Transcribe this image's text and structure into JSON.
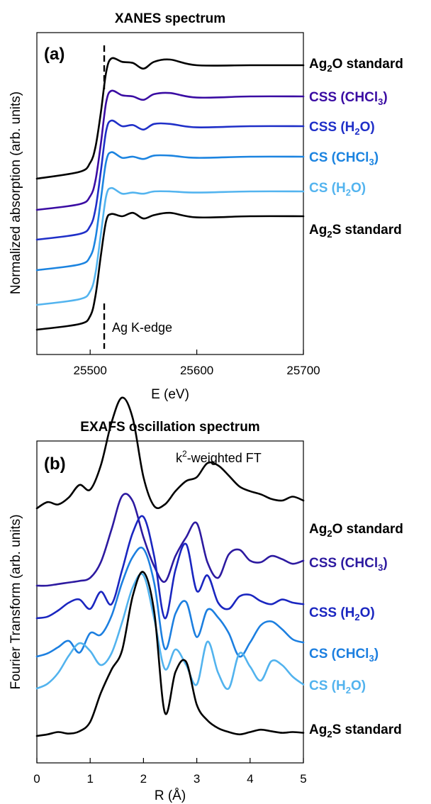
{
  "chart_data": [
    {
      "type": "line",
      "panel": "(a)",
      "title": "XANES spectrum",
      "xlabel": "E  (eV)",
      "ylabel": "Normalized absorption  (arb. units)",
      "xlim": [
        25450,
        25700
      ],
      "xticks": [
        25500,
        25600,
        25700
      ],
      "xtick_labels": [
        "25500",
        "25600",
        "25700"
      ],
      "annotation": "Ag K-edge",
      "edge_energy": 25512,
      "series": [
        {
          "name_pre": "Ag",
          "name_sub": "2",
          "name_post": "O standard",
          "color": "#000000",
          "offset": 0,
          "x": [
            25450,
            25490,
            25500,
            25505,
            25510,
            25515,
            25520,
            25530,
            25540,
            25550,
            25560,
            25575,
            25600,
            25650,
            25700
          ],
          "y": [
            0.0,
            0.06,
            0.14,
            0.28,
            0.58,
            0.94,
            1.06,
            1.03,
            1.02,
            0.97,
            1.03,
            1.05,
            1.0,
            1.0,
            1.0
          ]
        },
        {
          "name_pre": "CSS  (CHCl",
          "name_sub": "3",
          "name_post": ")",
          "color": "#3a0ca3",
          "offset": 0,
          "x": [
            25450,
            25490,
            25500,
            25505,
            25510,
            25515,
            25520,
            25530,
            25540,
            25550,
            25560,
            25575,
            25600,
            25650,
            25700
          ],
          "y": [
            0.0,
            0.05,
            0.12,
            0.26,
            0.58,
            0.95,
            1.05,
            1.01,
            1.0,
            0.97,
            1.02,
            1.03,
            0.99,
            1.0,
            1.0
          ]
        },
        {
          "name_pre": "CSS  (H",
          "name_sub": "2",
          "name_post": "O)",
          "color": "#1f2fc8",
          "offset": 0,
          "x": [
            25450,
            25490,
            25500,
            25505,
            25510,
            25515,
            25520,
            25530,
            25540,
            25550,
            25560,
            25575,
            25600,
            25650,
            25700
          ],
          "y": [
            0.0,
            0.05,
            0.12,
            0.27,
            0.6,
            0.96,
            1.05,
            1.0,
            1.01,
            0.97,
            1.02,
            1.02,
            0.99,
            1.0,
            1.0
          ]
        },
        {
          "name_pre": "CS (CHCl",
          "name_sub": "3",
          "name_post": ")",
          "color": "#1c84e0",
          "offset": 0,
          "x": [
            25450,
            25490,
            25500,
            25505,
            25510,
            25515,
            25520,
            25530,
            25540,
            25550,
            25560,
            25575,
            25600,
            25650,
            25700
          ],
          "y": [
            0.0,
            0.05,
            0.12,
            0.28,
            0.62,
            0.96,
            1.04,
            0.99,
            1.0,
            0.98,
            1.01,
            1.01,
            0.99,
            1.0,
            1.0
          ]
        },
        {
          "name_pre": "CS  (H",
          "name_sub": "2",
          "name_post": "O)",
          "color": "#53b4ef",
          "offset": 0,
          "x": [
            25450,
            25490,
            25500,
            25505,
            25510,
            25515,
            25520,
            25530,
            25540,
            25550,
            25560,
            25575,
            25600,
            25650,
            25700
          ],
          "y": [
            0.0,
            0.05,
            0.12,
            0.28,
            0.62,
            0.96,
            1.03,
            0.98,
            0.99,
            0.98,
            1.0,
            1.0,
            0.99,
            1.0,
            1.0
          ]
        },
        {
          "name_pre": "Ag",
          "name_sub": "2",
          "name_post": "S standard",
          "color": "#000000",
          "offset": 0,
          "x": [
            25450,
            25490,
            25500,
            25505,
            25510,
            25515,
            25520,
            25530,
            25540,
            25550,
            25560,
            25575,
            25600,
            25650,
            25700
          ],
          "y": [
            0.0,
            0.05,
            0.12,
            0.3,
            0.65,
            0.96,
            1.02,
            1.0,
            1.03,
            0.98,
            1.01,
            1.03,
            0.99,
            1.0,
            1.0
          ]
        }
      ]
    },
    {
      "type": "line",
      "panel": "(b)",
      "title": "EXAFS oscillation spectrum",
      "xlabel": "R (Å)",
      "ylabel": "Fourier Transform (arb. units)",
      "annotation_pre": "k",
      "annotation_sup": "2",
      "annotation_post": "-weighted FT",
      "xlim": [
        0,
        5
      ],
      "xticks": [
        0,
        1,
        2,
        3,
        4,
        5
      ],
      "xtick_labels": [
        "0",
        "1",
        "2",
        "3",
        "4",
        "5"
      ],
      "series": [
        {
          "name_pre": "Ag",
          "name_sub": "2",
          "name_post": "O standard",
          "color": "#000000",
          "x": [
            0,
            0.2,
            0.4,
            0.6,
            0.8,
            1.0,
            1.2,
            1.4,
            1.6,
            1.8,
            2.0,
            2.2,
            2.4,
            2.6,
            2.8,
            3.0,
            3.2,
            3.4,
            3.6,
            3.8,
            4.0,
            4.2,
            4.4,
            4.6,
            4.8,
            5.0
          ],
          "y": [
            0.0,
            0.08,
            0.05,
            0.14,
            0.3,
            0.24,
            0.55,
            1.1,
            1.42,
            1.15,
            0.4,
            0.03,
            0.05,
            0.22,
            0.35,
            0.4,
            0.58,
            0.55,
            0.42,
            0.28,
            0.22,
            0.18,
            0.12,
            0.1,
            0.15,
            0.1
          ]
        },
        {
          "name_pre": "CSS  (CHCl",
          "name_sub": "3",
          "name_post": ")",
          "color": "#2d1aa0",
          "x": [
            0,
            0.2,
            0.4,
            0.6,
            0.8,
            1.0,
            1.2,
            1.4,
            1.6,
            1.8,
            2.0,
            2.2,
            2.4,
            2.6,
            2.8,
            3.0,
            3.2,
            3.4,
            3.6,
            3.8,
            4.0,
            4.2,
            4.4,
            4.6,
            4.8,
            5.0
          ],
          "y": [
            0.0,
            0.0,
            0.02,
            0.04,
            0.06,
            0.1,
            0.3,
            0.72,
            1.15,
            1.08,
            0.62,
            0.25,
            0.05,
            0.38,
            0.62,
            0.8,
            0.3,
            0.1,
            0.4,
            0.46,
            0.32,
            0.3,
            0.38,
            0.34,
            0.28,
            0.32
          ]
        },
        {
          "name_pre": "CSS  (H",
          "name_sub": "2",
          "name_post": "O)",
          "color": "#1a26c0",
          "x": [
            0,
            0.2,
            0.4,
            0.6,
            0.8,
            1.0,
            1.2,
            1.4,
            1.6,
            1.8,
            2.0,
            2.2,
            2.4,
            2.6,
            2.8,
            3.0,
            3.2,
            3.4,
            3.6,
            3.8,
            4.0,
            4.2,
            4.4,
            4.6,
            4.8,
            5.0
          ],
          "y": [
            0.0,
            0.02,
            0.1,
            0.2,
            0.24,
            0.12,
            0.34,
            0.18,
            0.62,
            1.1,
            1.3,
            0.8,
            0.0,
            0.62,
            0.95,
            0.35,
            0.55,
            0.2,
            0.12,
            0.28,
            0.3,
            0.22,
            0.18,
            0.24,
            0.2,
            0.18
          ]
        },
        {
          "name_pre": "CS  (CHCl",
          "name_sub": "3",
          "name_post": ")",
          "color": "#1c7fe0",
          "x": [
            0,
            0.2,
            0.4,
            0.6,
            0.8,
            1.0,
            1.2,
            1.4,
            1.6,
            1.8,
            2.0,
            2.2,
            2.4,
            2.6,
            2.8,
            3.0,
            3.2,
            3.4,
            3.6,
            3.8,
            4.0,
            4.2,
            4.4,
            4.6,
            4.8,
            5.0
          ],
          "y": [
            0.0,
            0.04,
            0.12,
            0.2,
            0.05,
            0.3,
            0.28,
            0.52,
            0.95,
            1.28,
            1.38,
            0.95,
            0.1,
            0.55,
            0.7,
            0.25,
            0.6,
            0.5,
            0.3,
            0.0,
            0.18,
            0.4,
            0.45,
            0.35,
            0.22,
            0.18
          ]
        },
        {
          "name_pre": "CS  (H",
          "name_sub": "2",
          "name_post": "O)",
          "color": "#52b3ee",
          "x": [
            0,
            0.2,
            0.4,
            0.6,
            0.8,
            1.0,
            1.2,
            1.4,
            1.6,
            1.8,
            2.0,
            2.2,
            2.4,
            2.6,
            2.8,
            3.0,
            3.2,
            3.4,
            3.6,
            3.8,
            4.0,
            4.2,
            4.4,
            4.6,
            4.8,
            5.0
          ],
          "y": [
            0.0,
            0.06,
            0.2,
            0.42,
            0.58,
            0.48,
            0.3,
            0.45,
            0.85,
            1.3,
            1.45,
            0.9,
            0.25,
            0.5,
            0.3,
            0.05,
            0.6,
            0.2,
            0.0,
            0.45,
            0.28,
            0.1,
            0.35,
            0.3,
            0.15,
            0.05
          ]
        },
        {
          "name_pre": "Ag",
          "name_sub": "2",
          "name_post": "S standard",
          "color": "#000000",
          "x": [
            0,
            0.2,
            0.4,
            0.6,
            0.8,
            1.0,
            1.2,
            1.4,
            1.6,
            1.8,
            2.0,
            2.2,
            2.4,
            2.6,
            2.8,
            3.0,
            3.2,
            3.4,
            3.6,
            3.8,
            4.0,
            4.2,
            4.4,
            4.6,
            4.8,
            5.0
          ],
          "y": [
            0.0,
            0.02,
            0.05,
            0.03,
            0.06,
            0.18,
            0.55,
            0.85,
            1.1,
            1.8,
            2.1,
            1.6,
            0.3,
            0.82,
            0.95,
            0.4,
            0.2,
            0.1,
            0.05,
            0.02,
            0.05,
            0.08,
            0.06,
            0.04,
            0.05,
            0.04
          ]
        }
      ]
    }
  ]
}
